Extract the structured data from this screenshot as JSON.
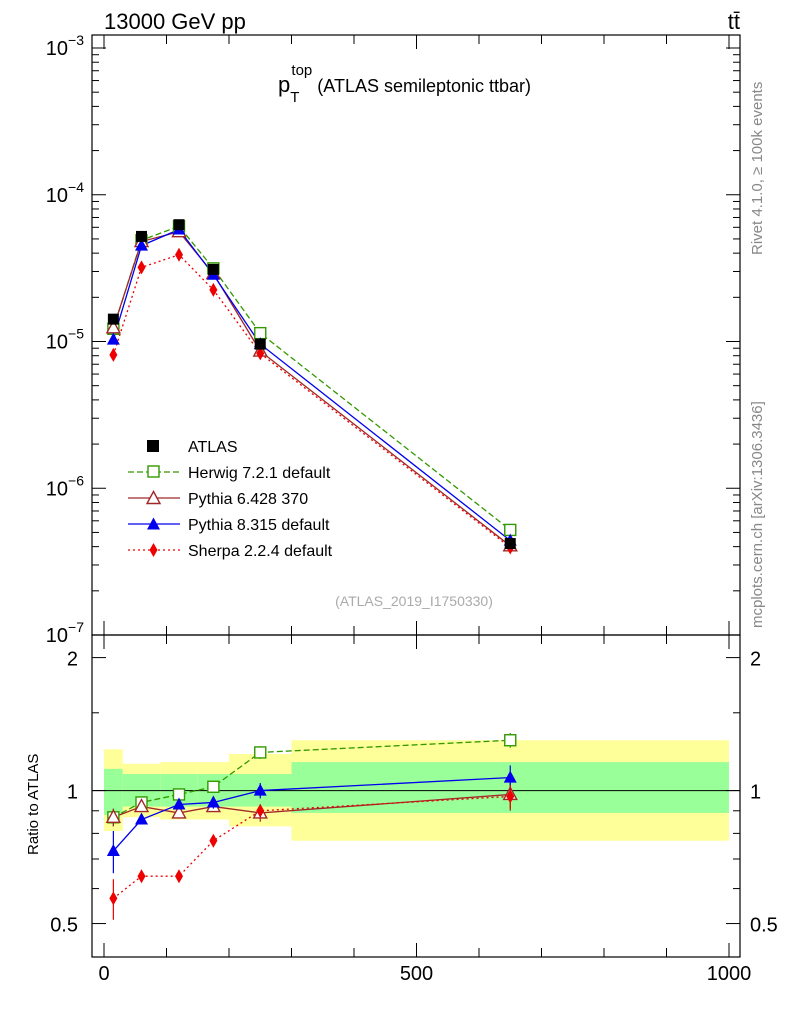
{
  "chart_data": {
    "type": "line",
    "header": {
      "energy": "13000 GeV pp",
      "process": "tt̄"
    },
    "title": {
      "main": "p",
      "sup": "top",
      "sub": "T",
      "rest": " (ATLAS semileptonic ttbar)"
    },
    "analysis": "(ATLAS_2019_I1750330)",
    "side_labels": {
      "rivet": "Rivet 4.1.0, ≥ 100k events",
      "site": "mcplots.cern.ch [arXiv:1306.3436]"
    },
    "xlim": [
      0,
      1000
    ],
    "main_ylim": [
      1e-07,
      0.001
    ],
    "ratio_ylim": [
      0.42,
      2.25
    ],
    "ratio_ylabel": "Ratio to ATLAS",
    "x_ticks": [
      "0",
      "500",
      "1000"
    ],
    "main_y_ticks": [
      {
        "base": "10",
        "exp": "−3"
      },
      {
        "base": "10",
        "exp": "−4"
      },
      {
        "base": "10",
        "exp": "−5"
      },
      {
        "base": "10",
        "exp": "−6"
      },
      {
        "base": "10",
        "exp": "−7"
      }
    ],
    "ratio_y_ticks": [
      "2",
      "1",
      "0.5"
    ],
    "bins": [
      0,
      30,
      90,
      150,
      200,
      300,
      1000
    ],
    "band_inner": [
      [
        0.88,
        1.12
      ],
      [
        0.92,
        1.09
      ],
      [
        0.92,
        1.09
      ],
      [
        0.92,
        1.09
      ],
      [
        0.92,
        1.09
      ],
      [
        0.89,
        1.16
      ]
    ],
    "band_outer": [
      [
        0.81,
        1.24
      ],
      [
        0.87,
        1.15
      ],
      [
        0.86,
        1.16
      ],
      [
        0.86,
        1.16
      ],
      [
        0.83,
        1.21
      ],
      [
        0.77,
        1.3
      ]
    ],
    "x": [
      15,
      60,
      120,
      175,
      250,
      650
    ],
    "atlas": {
      "name": "ATLAS",
      "values": [
        1.42e-05,
        5.2e-05,
        6.25e-05,
        3.1e-05,
        9.6e-06,
        4.2e-07
      ]
    },
    "series": [
      {
        "name": "Herwig 7.2.1 default",
        "color": "#339900",
        "marker": "open-square",
        "dash": "6,3",
        "values": [
          1.22e-05,
          4.9e-05,
          6.1e-05,
          3.15e-05,
          1.14e-05,
          5.2e-07
        ],
        "ratio": [
          0.87,
          0.94,
          0.98,
          1.02,
          1.22,
          1.3
        ],
        "ratio_err": [
          0.04,
          0.02,
          0.02,
          0.02,
          0.04,
          0.05
        ]
      },
      {
        "name": "Pythia 6.428 370",
        "color": "#a02828",
        "marker": "open-triangle",
        "dash": "",
        "values": [
          1.24e-05,
          4.8e-05,
          5.6e-05,
          2.9e-05,
          8.6e-06,
          4.05e-07
        ],
        "ratio": [
          0.87,
          0.92,
          0.89,
          0.92,
          0.89,
          0.98
        ],
        "ratio_err": [
          0.04,
          0.02,
          0.02,
          0.02,
          0.04,
          0.08
        ]
      },
      {
        "name": "Pythia 8.315 default",
        "color": "#0000ee",
        "marker": "filled-triangle",
        "dash": "",
        "values": [
          1.03e-05,
          4.5e-05,
          5.8e-05,
          2.85e-05,
          9.6e-06,
          4.4e-07
        ],
        "ratio": [
          0.73,
          0.86,
          0.93,
          0.94,
          1.0,
          1.07
        ],
        "ratio_err": [
          0.08,
          0.02,
          0.02,
          0.03,
          0.04,
          0.07
        ]
      },
      {
        "name": "Sherpa 2.2.4 default",
        "color": "#ee0000",
        "marker": "filled-diamond",
        "dash": "2,3",
        "values": [
          8.1e-06,
          3.2e-05,
          3.9e-05,
          2.25e-05,
          8.3e-06,
          3.95e-07
        ],
        "ratio": [
          0.57,
          0.64,
          0.64,
          0.77,
          0.9,
          0.97
        ],
        "ratio_err": [
          0.06,
          0.01,
          0.01,
          0.02,
          0.03,
          0.06
        ]
      }
    ]
  }
}
